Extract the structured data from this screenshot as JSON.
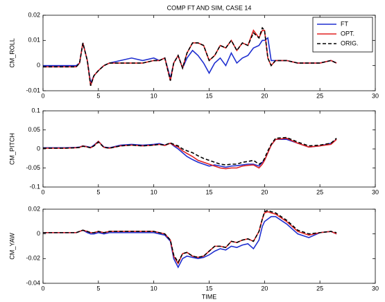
{
  "chart_data": [
    {
      "type": "line",
      "title": "COMP FT AND SIM, CASE 14",
      "ylabel": "CM_ROLL",
      "legend": "upper right",
      "x": [
        0,
        1,
        2,
        3,
        3.3,
        3.6,
        4,
        4.3,
        4.6,
        5,
        5.5,
        6,
        7,
        8,
        9,
        10,
        10.5,
        11,
        11.5,
        11.8,
        12.2,
        12.6,
        13,
        13.5,
        14,
        14.5,
        15,
        15.5,
        16,
        16.5,
        17,
        17.5,
        18,
        18.5,
        19,
        19.5,
        19.8,
        20,
        20.3,
        20.6,
        21,
        22,
        23,
        24,
        25,
        26,
        26.5
      ],
      "xlim": [
        0,
        30
      ],
      "xticks": [
        0,
        5,
        10,
        15,
        20,
        25,
        30
      ],
      "ylim": [
        -0.01,
        0.02
      ],
      "yticks": [
        -0.01,
        0,
        0.01,
        0.02
      ],
      "series": [
        {
          "name": "FT",
          "color": "#1f2fd0",
          "linestyle": "solid",
          "values": [
            0,
            0,
            0,
            0,
            0.001,
            0.009,
            0.002,
            -0.007,
            -0.004,
            -0.002,
            0,
            0.001,
            0.002,
            0.003,
            0.002,
            0.003,
            0.002,
            0.003,
            -0.005,
            0.001,
            0.004,
            -0.001,
            0.003,
            0.006,
            0.004,
            0.001,
            -0.003,
            0.001,
            0.003,
            0,
            0.005,
            0.001,
            0.003,
            0.004,
            0.007,
            0.008,
            0.01,
            0.01,
            0.011,
            0.002,
            0.002,
            0.002,
            0.001,
            0.001,
            0.001,
            0.002,
            0.001
          ]
        },
        {
          "name": "OPT.",
          "color": "#e02020",
          "linestyle": "solid",
          "values": [
            -0.0005,
            -0.0005,
            -0.0005,
            -0.0005,
            0.001,
            0.009,
            0.002,
            -0.008,
            -0.004,
            -0.002,
            0,
            0.001,
            0.001,
            0.001,
            0.001,
            0.002,
            0.002,
            0.003,
            -0.006,
            0.001,
            0.004,
            -0.001,
            0.005,
            0.009,
            0.009,
            0.008,
            0.002,
            0.004,
            0.008,
            0.007,
            0.01,
            0.006,
            0.009,
            0.008,
            0.014,
            0.011,
            0.014,
            0.014,
            0.003,
            0,
            0.002,
            0.002,
            0.001,
            0.001,
            0.001,
            0.002,
            0.001
          ]
        },
        {
          "name": "ORIG.",
          "color": "#000000",
          "linestyle": "dashed",
          "values": [
            -0.0005,
            -0.0005,
            -0.0005,
            -0.0005,
            0.001,
            0.009,
            0.002,
            -0.008,
            -0.004,
            -0.002,
            0,
            0.001,
            0.001,
            0.001,
            0.001,
            0.002,
            0.002,
            0.003,
            -0.006,
            0.001,
            0.004,
            -0.001,
            0.005,
            0.009,
            0.009,
            0.008,
            0.002,
            0.004,
            0.008,
            0.007,
            0.01,
            0.006,
            0.009,
            0.008,
            0.013,
            0.011,
            0.015,
            0.014,
            0.003,
            0,
            0.002,
            0.002,
            0.001,
            0.001,
            0.001,
            0.002,
            0.001
          ]
        }
      ]
    },
    {
      "type": "line",
      "ylabel": "CM_PITCH",
      "x": [
        0,
        1,
        2,
        3,
        3.3,
        3.6,
        4,
        4.3,
        4.6,
        5,
        5.5,
        6,
        7,
        8,
        9,
        10,
        10.5,
        11,
        11.5,
        11.8,
        12.2,
        12.6,
        13,
        13.5,
        14,
        14.5,
        15,
        15.5,
        16,
        16.5,
        17,
        17.5,
        18,
        18.5,
        19,
        19.5,
        19.8,
        20,
        20.3,
        20.6,
        21,
        22,
        23,
        24,
        25,
        26,
        26.5
      ],
      "xlim": [
        0,
        30
      ],
      "xticks": [
        0,
        5,
        10,
        15,
        20,
        25,
        30
      ],
      "ylim": [
        -0.1,
        0.1
      ],
      "yticks": [
        -0.1,
        -0.05,
        0,
        0.05,
        0.1
      ],
      "series": [
        {
          "name": "FT",
          "color": "#1f2fd0",
          "linestyle": "solid",
          "values": [
            0.003,
            0.003,
            0.003,
            0.004,
            0.005,
            0.008,
            0.006,
            0.004,
            0.01,
            0.02,
            0.005,
            0.003,
            0.01,
            0.012,
            0.01,
            0.012,
            0.014,
            0.01,
            0.015,
            0.008,
            0,
            -0.01,
            -0.02,
            -0.028,
            -0.035,
            -0.04,
            -0.045,
            -0.042,
            -0.045,
            -0.048,
            -0.045,
            -0.044,
            -0.042,
            -0.04,
            -0.04,
            -0.045,
            -0.035,
            -0.03,
            -0.01,
            0.01,
            0.025,
            0.025,
            0.015,
            0.005,
            0.008,
            0.015,
            0.025
          ]
        },
        {
          "name": "OPT.",
          "color": "#e02020",
          "linestyle": "solid",
          "values": [
            0.002,
            0.002,
            0.002,
            0.003,
            0.004,
            0.008,
            0.005,
            0.003,
            0.008,
            0.02,
            0.004,
            0.002,
            0.008,
            0.01,
            0.008,
            0.01,
            0.012,
            0.009,
            0.015,
            0.01,
            0.005,
            -0.005,
            -0.012,
            -0.02,
            -0.03,
            -0.035,
            -0.04,
            -0.045,
            -0.05,
            -0.052,
            -0.05,
            -0.05,
            -0.045,
            -0.043,
            -0.042,
            -0.05,
            -0.04,
            -0.03,
            -0.01,
            0.01,
            0.025,
            0.028,
            0.015,
            0.005,
            0.008,
            0.012,
            0.025
          ]
        },
        {
          "name": "ORIG.",
          "color": "#000000",
          "linestyle": "dashed",
          "values": [
            0.002,
            0.002,
            0.002,
            0.003,
            0.004,
            0.007,
            0.005,
            0.003,
            0.008,
            0.018,
            0.004,
            0.002,
            0.008,
            0.01,
            0.008,
            0.01,
            0.012,
            0.01,
            0.016,
            0.012,
            0.008,
            0,
            -0.005,
            -0.01,
            -0.018,
            -0.025,
            -0.03,
            -0.035,
            -0.04,
            -0.042,
            -0.04,
            -0.04,
            -0.035,
            -0.033,
            -0.03,
            -0.04,
            -0.035,
            -0.025,
            -0.005,
            0.012,
            0.028,
            0.03,
            0.018,
            0.008,
            0.01,
            0.015,
            0.028
          ]
        }
      ]
    },
    {
      "type": "line",
      "ylabel": "CM_YAW",
      "xlabel": "TIME",
      "x": [
        0,
        1,
        2,
        3,
        3.3,
        3.6,
        4,
        4.3,
        4.6,
        5,
        5.5,
        6,
        7,
        8,
        9,
        10,
        10.5,
        11,
        11.5,
        11.8,
        12.2,
        12.6,
        13,
        13.5,
        14,
        14.5,
        15,
        15.5,
        16,
        16.5,
        17,
        17.5,
        18,
        18.5,
        19,
        19.5,
        19.8,
        20,
        20.3,
        20.6,
        21,
        22,
        23,
        24,
        25,
        26,
        26.5
      ],
      "xlim": [
        0,
        30
      ],
      "xticks": [
        0,
        5,
        10,
        15,
        20,
        25,
        30
      ],
      "ylim": [
        -0.04,
        0.02
      ],
      "yticks": [
        -0.04,
        -0.02,
        0,
        0.02
      ],
      "series": [
        {
          "name": "FT",
          "color": "#1f2fd0",
          "linestyle": "solid",
          "values": [
            0.001,
            0.001,
            0.001,
            0.001,
            0.002,
            0.003,
            0.001,
            0,
            0,
            0.001,
            0,
            0.001,
            0.001,
            0.001,
            0.001,
            0.001,
            0,
            -0.001,
            -0.006,
            -0.02,
            -0.027,
            -0.02,
            -0.018,
            -0.019,
            -0.02,
            -0.019,
            -0.017,
            -0.014,
            -0.012,
            -0.013,
            -0.01,
            -0.011,
            -0.009,
            -0.008,
            -0.012,
            -0.005,
            0.006,
            0.01,
            0.012,
            0.014,
            0.014,
            0.008,
            0,
            -0.003,
            0.001,
            0.002,
            0
          ]
        },
        {
          "name": "OPT.",
          "color": "#e02020",
          "linestyle": "solid",
          "values": [
            0.001,
            0.001,
            0.001,
            0.001,
            0.002,
            0.003,
            0.002,
            0.001,
            0.001,
            0.002,
            0.001,
            0.002,
            0.002,
            0.002,
            0.002,
            0.002,
            0.001,
            0,
            -0.005,
            -0.018,
            -0.024,
            -0.016,
            -0.015,
            -0.018,
            -0.019,
            -0.018,
            -0.014,
            -0.01,
            -0.01,
            -0.011,
            -0.006,
            -0.007,
            -0.005,
            -0.004,
            -0.006,
            0.002,
            0.012,
            0.017,
            0.018,
            0.017,
            0.016,
            0.01,
            0.002,
            -0.001,
            0.001,
            0.002,
            0
          ]
        },
        {
          "name": "ORIG.",
          "color": "#000000",
          "linestyle": "dashed",
          "values": [
            0.001,
            0.001,
            0.001,
            0.001,
            0.002,
            0.003,
            0.002,
            0.001,
            0.001,
            0.002,
            0.001,
            0.002,
            0.002,
            0.002,
            0.002,
            0.002,
            0.001,
            0,
            -0.005,
            -0.017,
            -0.023,
            -0.016,
            -0.015,
            -0.018,
            -0.019,
            -0.018,
            -0.014,
            -0.01,
            -0.01,
            -0.011,
            -0.006,
            -0.007,
            -0.005,
            -0.004,
            -0.006,
            0.002,
            0.012,
            0.018,
            0.019,
            0.018,
            0.017,
            0.011,
            0.003,
            0,
            0.001,
            0.002,
            0.001
          ]
        }
      ]
    }
  ]
}
